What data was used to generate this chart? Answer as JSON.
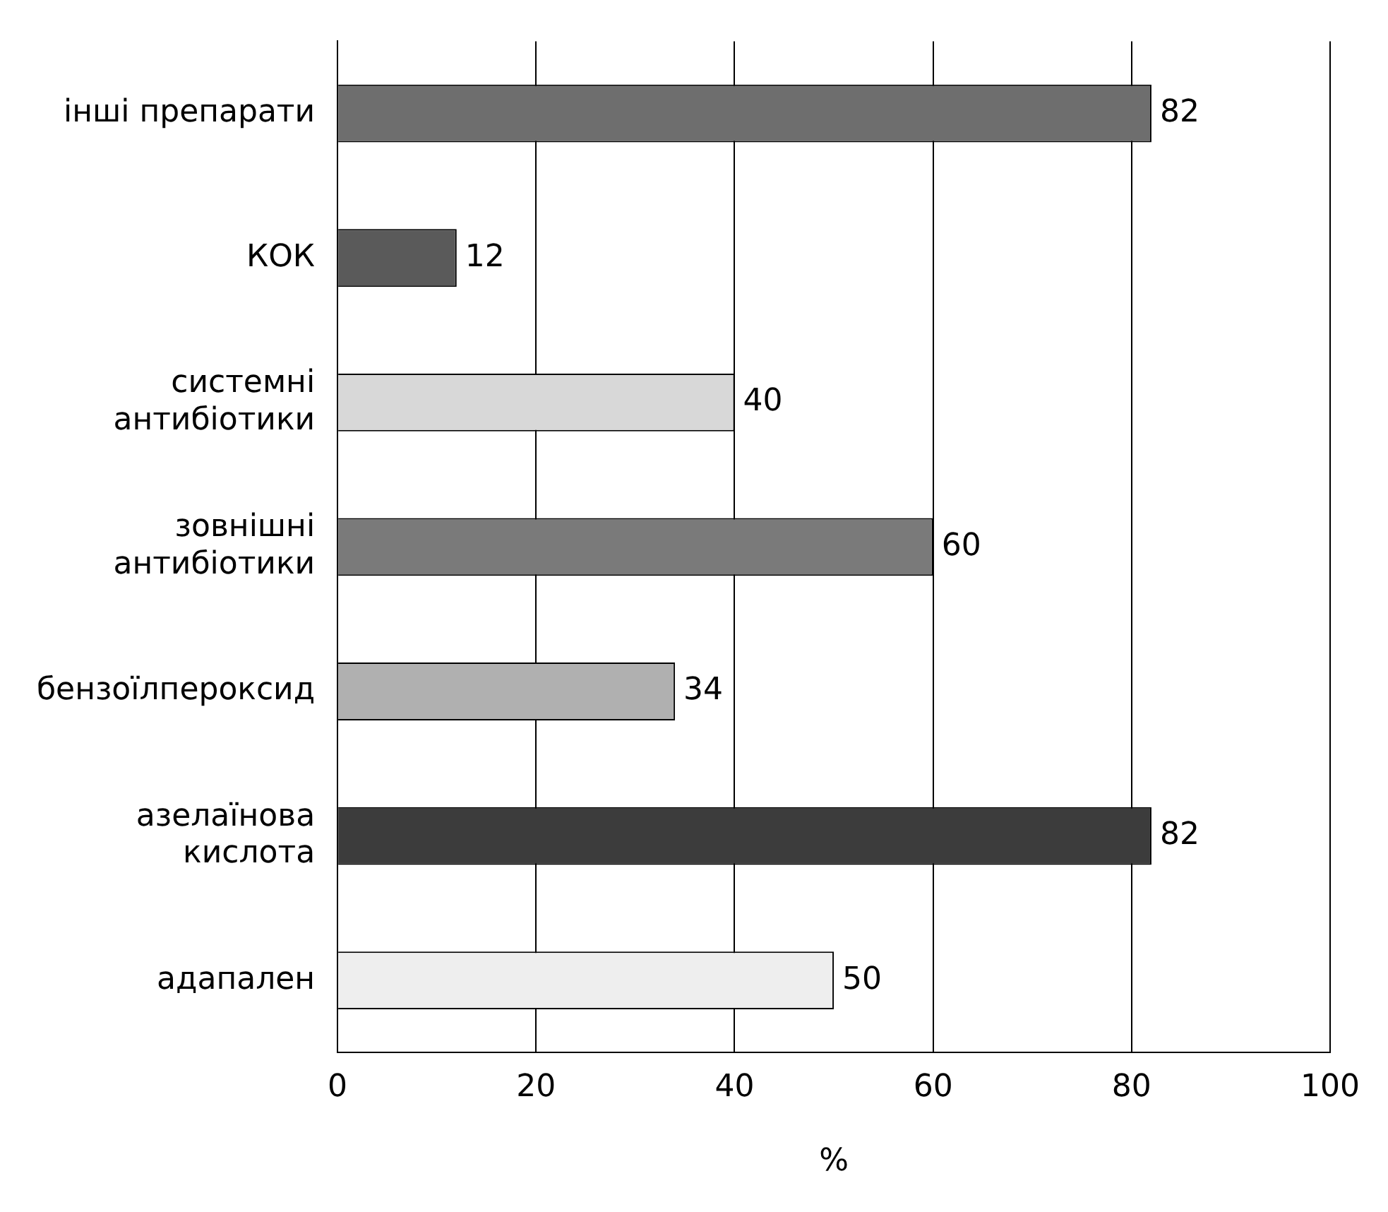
{
  "chart_data": {
    "type": "bar",
    "orientation": "horizontal",
    "xlabel": "%",
    "categories": [
      "інші препарати",
      "КОК",
      "системні\nантибіотики",
      "зовнішні\nантибіотики",
      "бензоїлпероксид",
      "азелаїнова\nкислота",
      "адапален"
    ],
    "values": [
      82,
      12,
      40,
      60,
      34,
      82,
      50
    ],
    "colors": [
      "#6e6e6e",
      "#5a5a5a",
      "#d8d8d8",
      "#7a7a7a",
      "#b0b0b0",
      "#3c3c3c",
      "#eeeeee"
    ],
    "xlim": [
      0,
      100
    ],
    "xticks": [
      0,
      20,
      40,
      60,
      80,
      100
    ],
    "grid": "x",
    "data_labels": true,
    "legend": false
  }
}
